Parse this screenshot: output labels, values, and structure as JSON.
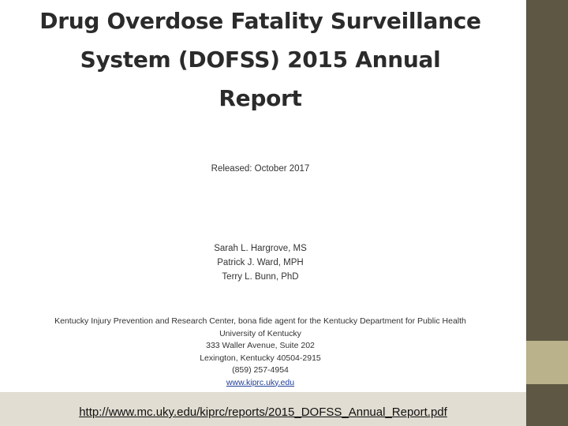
{
  "report": {
    "title_lines": [
      "Drug Overdose Fatality Surveillance",
      "System (DOFSS) 2015 Annual",
      "Report"
    ],
    "released": "Released: October 2017",
    "authors": [
      "Sarah L. Hargrove, MS",
      "Patrick J. Ward, MPH",
      "Terry L. Bunn, PhD"
    ],
    "address_lines": [
      "Kentucky Injury Prevention and Research Center, bona fide agent for the Kentucky Department for Public Health",
      "University of Kentucky",
      "333 Waller Avenue, Suite 202",
      "Lexington, Kentucky 40504-2915",
      "(859) 257-4954"
    ],
    "website": "www.kiprc.uky.edu"
  },
  "footer": {
    "source_url": "http://www.mc.uky.edu/kiprc/reports/2015_DOFSS_Annual_Report.pdf"
  },
  "colors": {
    "side_bar_dark": "#5d5743",
    "side_bar_light": "#b9b28a",
    "footer_band": "#e1ddd2"
  }
}
